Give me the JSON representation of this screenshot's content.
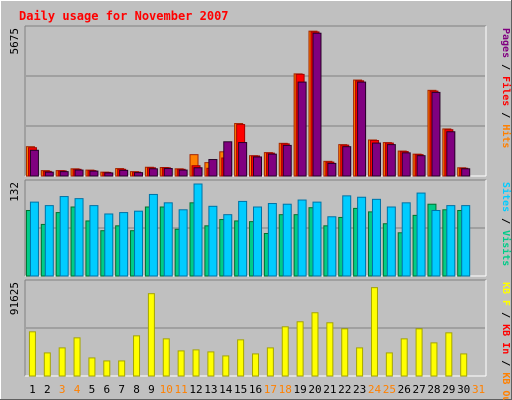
{
  "title": "Daily usage for November 2007",
  "colors": {
    "background": "#c0c0c0",
    "title": "#ff0000",
    "hits": "#ff8000",
    "files": "#ff0000",
    "pages": "#800080",
    "visits": "#00cc88",
    "sites": "#00ccff",
    "kb": "#ffff00",
    "weekend": "#ff8000",
    "weekday": "#000000",
    "gridline": "#808080"
  },
  "chart_data": [
    {
      "type": "bar",
      "panel": "hits-files-pages",
      "y_max_label": "5675",
      "ylim": [
        0,
        5675
      ],
      "side_label": [
        {
          "text": "Pages",
          "color_key": "pages"
        },
        {
          "text": " / ",
          "color_key": "weekday"
        },
        {
          "text": "Files",
          "color_key": "files"
        },
        {
          "text": " / ",
          "color_key": "weekday"
        },
        {
          "text": "Hits",
          "color_key": "hits"
        }
      ],
      "categories": [
        "1",
        "2",
        "3",
        "4",
        "5",
        "6",
        "7",
        "8",
        "9",
        "10",
        "11",
        "12",
        "13",
        "14",
        "15",
        "16",
        "17",
        "18",
        "19",
        "20",
        "21",
        "22",
        "23",
        "24",
        "25",
        "26",
        "27",
        "28",
        "29",
        "30",
        "31"
      ],
      "series": [
        {
          "name": "Hits",
          "color_key": "hits",
          "values": [
            1140,
            210,
            210,
            280,
            230,
            150,
            290,
            170,
            340,
            330,
            280,
            830,
            520,
            940,
            2040,
            790,
            910,
            1270,
            3970,
            5630,
            570,
            1220,
            3730,
            1400,
            1300,
            970,
            850,
            3330,
            1830,
            320,
            0
          ]
        },
        {
          "name": "Files",
          "color_key": "files",
          "values": [
            1100,
            180,
            200,
            260,
            210,
            140,
            260,
            150,
            320,
            320,
            260,
            400,
            300,
            700,
            2000,
            780,
            890,
            1250,
            3950,
            5600,
            540,
            1200,
            3700,
            1380,
            1280,
            950,
            830,
            3300,
            1800,
            300,
            0
          ]
        },
        {
          "name": "Pages",
          "color_key": "pages",
          "values": [
            1000,
            150,
            170,
            230,
            190,
            120,
            220,
            130,
            280,
            290,
            230,
            320,
            640,
            1330,
            1300,
            740,
            850,
            1190,
            3650,
            5550,
            490,
            1140,
            3650,
            1280,
            1220,
            900,
            790,
            3250,
            1720,
            280,
            0
          ]
        }
      ]
    },
    {
      "type": "bar",
      "panel": "visits-sites",
      "y_max_label": "132",
      "ylim": [
        0,
        132
      ],
      "side_label": [
        {
          "text": "Sites",
          "color_key": "sites"
        },
        {
          "text": " / ",
          "color_key": "weekday"
        },
        {
          "text": "Visits",
          "color_key": "visits"
        }
      ],
      "categories": [
        "1",
        "2",
        "3",
        "4",
        "5",
        "6",
        "7",
        "8",
        "9",
        "10",
        "11",
        "12",
        "13",
        "14",
        "15",
        "16",
        "17",
        "18",
        "19",
        "20",
        "21",
        "22",
        "23",
        "24",
        "25",
        "26",
        "27",
        "28",
        "29",
        "30",
        "31"
      ],
      "series": [
        {
          "name": "Visits",
          "color_key": "visits",
          "values": [
            94,
            74,
            91,
            99,
            79,
            65,
            72,
            65,
            99,
            99,
            67,
            105,
            72,
            81,
            79,
            78,
            61,
            88,
            88,
            98,
            72,
            84,
            97,
            92,
            75,
            62,
            87,
            103,
            95,
            94,
            0
          ]
        },
        {
          "name": "Sites",
          "color_key": "sites",
          "values": [
            106,
            101,
            114,
            111,
            101,
            89,
            91,
            93,
            117,
            105,
            95,
            132,
            100,
            88,
            107,
            99,
            104,
            103,
            109,
            106,
            85,
            115,
            113,
            110,
            99,
            105,
            119,
            94,
            101,
            101,
            0
          ]
        }
      ]
    },
    {
      "type": "bar",
      "panel": "kbytes",
      "y_max_label": "91625",
      "ylim": [
        0,
        91625
      ],
      "side_label": [
        {
          "text": "KB F",
          "color_key": "kb"
        },
        {
          "text": " / ",
          "color_key": "weekday"
        },
        {
          "text": "KB In",
          "color_key": "files"
        },
        {
          "text": " / ",
          "color_key": "weekday"
        },
        {
          "text": "KB Out",
          "color_key": "hits"
        }
      ],
      "categories": [
        "1",
        "2",
        "3",
        "4",
        "5",
        "6",
        "7",
        "8",
        "9",
        "10",
        "11",
        "12",
        "13",
        "14",
        "15",
        "16",
        "17",
        "18",
        "19",
        "20",
        "21",
        "22",
        "23",
        "24",
        "25",
        "26",
        "27",
        "28",
        "29",
        "30",
        "31"
      ],
      "series": [
        {
          "name": "KB F",
          "color_key": "kb",
          "values": [
            44000,
            23000,
            28000,
            38000,
            18000,
            15000,
            15000,
            40000,
            82000,
            37000,
            25000,
            26000,
            24000,
            20000,
            36000,
            22000,
            28000,
            49000,
            54000,
            63000,
            53000,
            47000,
            28000,
            88000,
            23000,
            37000,
            47000,
            33000,
            43000,
            22000,
            0
          ]
        }
      ]
    }
  ],
  "x_axis": {
    "days": [
      {
        "label": "1",
        "weekend": false
      },
      {
        "label": "2",
        "weekend": false
      },
      {
        "label": "3",
        "weekend": true
      },
      {
        "label": "4",
        "weekend": true
      },
      {
        "label": "5",
        "weekend": false
      },
      {
        "label": "6",
        "weekend": false
      },
      {
        "label": "7",
        "weekend": false
      },
      {
        "label": "8",
        "weekend": false
      },
      {
        "label": "9",
        "weekend": false
      },
      {
        "label": "10",
        "weekend": true
      },
      {
        "label": "11",
        "weekend": true
      },
      {
        "label": "12",
        "weekend": false
      },
      {
        "label": "13",
        "weekend": false
      },
      {
        "label": "14",
        "weekend": false
      },
      {
        "label": "15",
        "weekend": false
      },
      {
        "label": "16",
        "weekend": false
      },
      {
        "label": "17",
        "weekend": true
      },
      {
        "label": "18",
        "weekend": true
      },
      {
        "label": "19",
        "weekend": false
      },
      {
        "label": "20",
        "weekend": false
      },
      {
        "label": "21",
        "weekend": false
      },
      {
        "label": "22",
        "weekend": false
      },
      {
        "label": "23",
        "weekend": false
      },
      {
        "label": "24",
        "weekend": true
      },
      {
        "label": "25",
        "weekend": true
      },
      {
        "label": "26",
        "weekend": false
      },
      {
        "label": "27",
        "weekend": false
      },
      {
        "label": "28",
        "weekend": false
      },
      {
        "label": "29",
        "weekend": false
      },
      {
        "label": "30",
        "weekend": false
      },
      {
        "label": "31",
        "weekend": true
      }
    ]
  }
}
